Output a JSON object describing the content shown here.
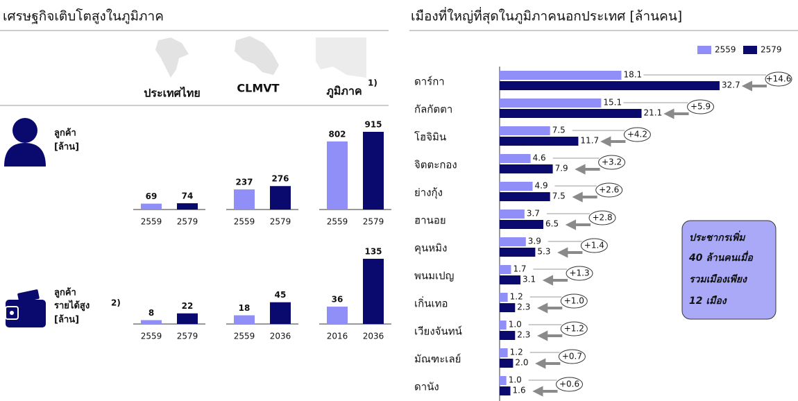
{
  "left_panel": {
    "title": "เศรษฐกิจเติบโตสูงในภูมิภาค",
    "columns": [
      {
        "label": "ประเทศไทย"
      },
      {
        "label": "CLMVT"
      },
      {
        "label": "ภูมิภาค",
        "note": "1)"
      }
    ],
    "rows": [
      {
        "label_lines": [
          "ลูกค้า",
          "[ล้าน]"
        ]
      },
      {
        "label_lines": [
          "ลูกค้า",
          "รายได้สูง",
          "[ล้าน]"
        ],
        "note": "2)"
      }
    ]
  },
  "right_panel": {
    "callout": [
      "ประชากรเพิ่ม",
      "40 ล้านคนเมื่อ",
      "รวมเมืองเพียง",
      "12 เมือง"
    ]
  },
  "chart_data": [
    {
      "type": "bar",
      "categories": [
        "2559",
        "2579"
      ],
      "values": [
        69,
        74
      ],
      "colors": [
        "#8f8ff7",
        "#0a0a6e"
      ]
    },
    {
      "type": "bar",
      "categories": [
        "2559",
        "2579"
      ],
      "values": [
        237,
        276
      ],
      "colors": [
        "#8f8ff7",
        "#0a0a6e"
      ]
    },
    {
      "type": "bar",
      "categories": [
        "2559",
        "2579"
      ],
      "values": [
        802,
        915
      ],
      "colors": [
        "#8f8ff7",
        "#0a0a6e"
      ]
    },
    {
      "type": "bar",
      "categories": [
        "2559",
        "2579"
      ],
      "values": [
        8,
        22
      ],
      "colors": [
        "#8f8ff7",
        "#0a0a6e"
      ]
    },
    {
      "type": "bar",
      "categories": [
        "2559",
        "2036"
      ],
      "values": [
        18,
        45
      ],
      "colors": [
        "#8f8ff7",
        "#0a0a6e"
      ]
    },
    {
      "type": "bar",
      "categories": [
        "2016",
        "2036"
      ],
      "values": [
        36,
        135
      ],
      "colors": [
        "#8f8ff7",
        "#0a0a6e"
      ]
    },
    {
      "type": "hbar",
      "title": "เมืองที่ใหญ่ที่สุดในภูมิภาคนอกประเทศ [ล้านคน]",
      "categories": [
        "ดาร์กา",
        "กัลกัตตา",
        "โฮจิมิน",
        "จิตตะกอง",
        "ย่างกุ้ง",
        "ฮานอย",
        "คุนหมิง",
        "พนมเปญ",
        "เกิ่นเทอ",
        "เวียงจันทน์",
        "มัณฑะเลย์",
        "ดานัง"
      ],
      "series": [
        {
          "name": "2559",
          "color": "#8f8ff7",
          "values": [
            18.1,
            15.1,
            7.5,
            4.6,
            4.9,
            3.7,
            3.9,
            1.7,
            1.2,
            1.0,
            1.2,
            1.0
          ],
          "value_labels": [
            "18.1",
            "15.1",
            "7.5",
            "4.6",
            "4.9",
            "3.7",
            "3.9",
            "1.7",
            "1.2",
            "1.0",
            "1.2",
            "1.0"
          ]
        },
        {
          "name": "2579",
          "color": "#0a0a6e",
          "values": [
            32.7,
            21.1,
            11.7,
            7.9,
            7.5,
            6.5,
            5.3,
            3.1,
            2.3,
            2.3,
            2.0,
            1.6
          ],
          "value_labels": [
            "32.7",
            "21.1",
            "11.7",
            "7.9",
            "7.5",
            "6.5",
            "5.3",
            "3.1",
            "2.3",
            "2.3",
            "2.0",
            "1.6"
          ]
        }
      ],
      "differences": [
        14.6,
        5.9,
        4.2,
        3.2,
        2.6,
        2.8,
        1.4,
        1.3,
        1.0,
        1.2,
        0.7,
        0.6
      ],
      "difference_labels": [
        "+14.6",
        "+5.9",
        "+4.2",
        "+3.2",
        "+2.6",
        "+2.8",
        "+1.4",
        "+1.3",
        "+1.0",
        "+1.2",
        "+0.7",
        "+0.6"
      ],
      "legend": "top-right"
    }
  ]
}
